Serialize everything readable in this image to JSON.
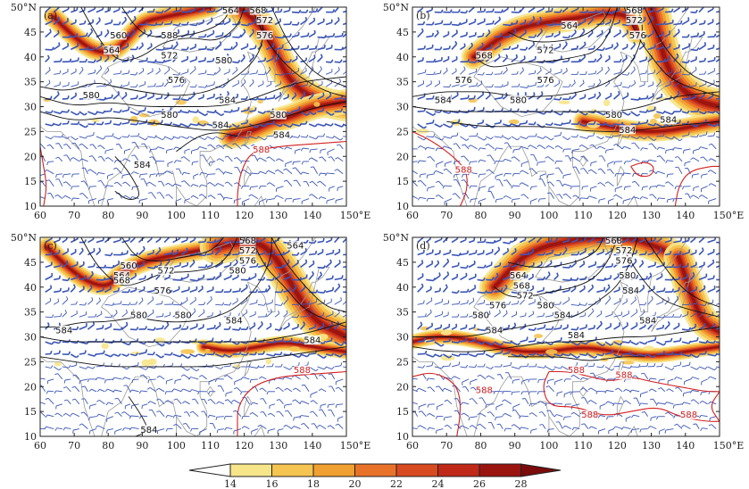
{
  "figure": {
    "panels": [
      {
        "tag": "(a)",
        "black_contour_labels": [
          "564",
          "568",
          "572",
          "576",
          "560",
          "588",
          "564",
          "572",
          "580",
          "576",
          "584",
          "580",
          "580",
          "584",
          "580",
          "584",
          "584"
        ],
        "red_contour_labels": [
          "588"
        ]
      },
      {
        "tag": "(b)",
        "black_contour_labels": [
          "564",
          "568",
          "572",
          "576",
          "568",
          "572",
          "576",
          "576",
          "580",
          "584",
          "580",
          "584",
          "584"
        ],
        "red_contour_labels": [
          "588"
        ]
      },
      {
        "tag": "(c)",
        "black_contour_labels": [
          "564",
          "568",
          "572",
          "576",
          "580",
          "560",
          "564",
          "568",
          "572",
          "576",
          "580",
          "584",
          "580",
          "584",
          "584",
          "584"
        ],
        "red_contour_labels": [
          "588"
        ]
      },
      {
        "tag": "(d)",
        "black_contour_labels": [
          "568",
          "572",
          "576",
          "580",
          "584",
          "564",
          "568",
          "572",
          "576",
          "580",
          "584",
          "580",
          "584",
          "584",
          "584"
        ],
        "red_contour_labels": [
          "588",
          "588",
          "588",
          "588",
          "588"
        ]
      }
    ],
    "x_ticks": [
      "60",
      "70",
      "80",
      "90",
      "100",
      "110",
      "120",
      "130",
      "140",
      "150°E"
    ],
    "y_ticks": [
      "10",
      "15",
      "20",
      "25",
      "30",
      "35",
      "40",
      "45",
      "50°N"
    ],
    "colorbar": {
      "ticks": [
        "14",
        "16",
        "18",
        "20",
        "22",
        "24",
        "26",
        "28"
      ],
      "colors": [
        "#ffffff",
        "#f7e58a",
        "#f5c451",
        "#f0a030",
        "#e8722a",
        "#d84a20",
        "#c02818",
        "#9a1410",
        "#7a0c0c"
      ]
    }
  }
}
